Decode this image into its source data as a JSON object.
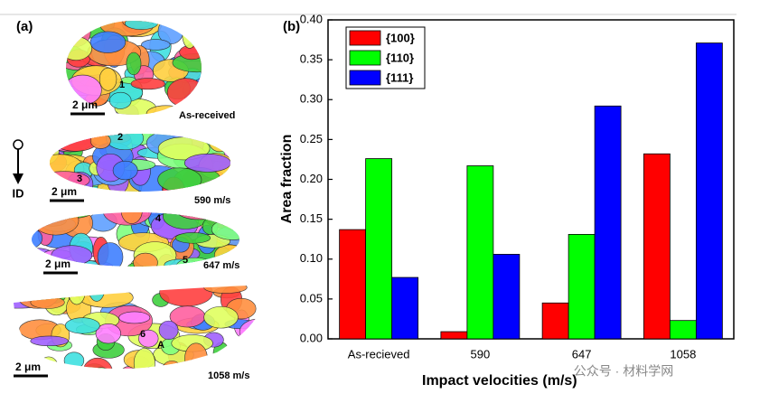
{
  "chart_data": {
    "type": "bar",
    "panel_label": "(b)",
    "x_label": "Impact velocities (m/s)",
    "y_label": "Area fraction",
    "categories": [
      "As-recieved",
      "590",
      "647",
      "1058"
    ],
    "series": [
      {
        "name": "{100}",
        "color": "#ff0000",
        "values": [
          0.137,
          0.009,
          0.045,
          0.232
        ]
      },
      {
        "name": "{110}",
        "color": "#00ff00",
        "values": [
          0.226,
          0.217,
          0.131,
          0.023
        ]
      },
      {
        "name": "{111}",
        "color": "#0000ff",
        "values": [
          0.077,
          0.106,
          0.292,
          0.371
        ]
      }
    ],
    "ylim": [
      0,
      0.4
    ],
    "yticks": [
      {
        "value": 0,
        "label": "0.00"
      },
      {
        "value": 0.05,
        "label": "0.05"
      },
      {
        "value": 0.1,
        "label": "0.10"
      },
      {
        "value": 0.15,
        "label": "0.15"
      },
      {
        "value": 0.2,
        "label": "0.20"
      },
      {
        "value": 0.25,
        "label": "0.25"
      },
      {
        "value": 0.3,
        "label": "0.30"
      },
      {
        "value": 0.35,
        "label": "0.35"
      },
      {
        "value": 0.4,
        "label": "0.40"
      }
    ],
    "legend": "upper left",
    "grid": false
  },
  "panel_a": {
    "label": "(a)",
    "direction": "ID",
    "samples": [
      {
        "scale": "2 μm",
        "caption": "As-received",
        "grains": [
          "1"
        ]
      },
      {
        "scale": "2 μm",
        "caption": "590 m/s",
        "grains": [
          "2",
          "3"
        ]
      },
      {
        "scale": "2 μm",
        "caption": "647 m/s",
        "grains": [
          "4",
          "5"
        ]
      },
      {
        "scale": "2 μm",
        "caption": "1058 m/s",
        "grains": [
          "6",
          "A"
        ]
      }
    ]
  },
  "watermark": "公众号 · 材料学网"
}
